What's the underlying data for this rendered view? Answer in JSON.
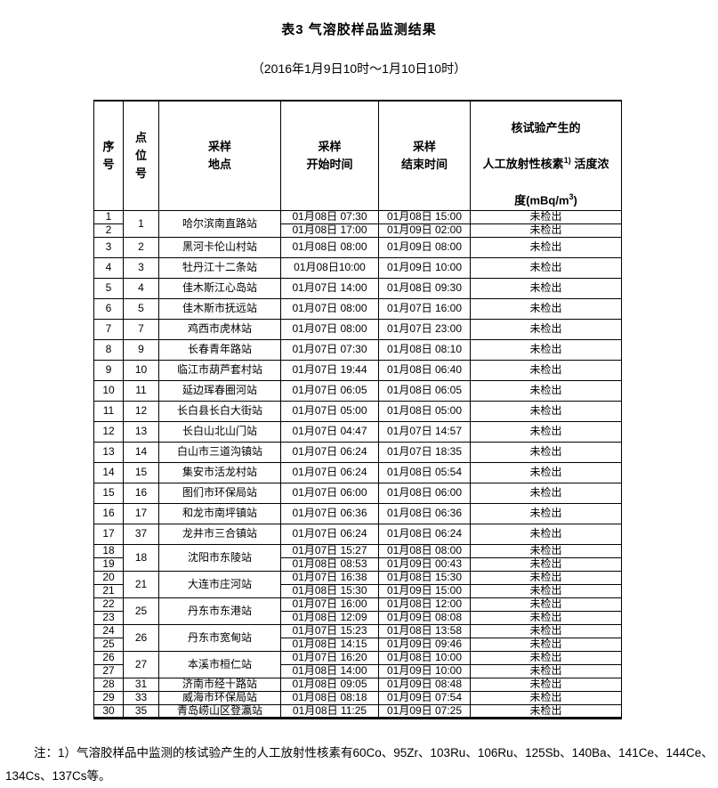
{
  "page": {
    "title": "表3 气溶胶样品监测结果",
    "subtitle": "（2016年1月9日10时～1月10日10时）",
    "note_line1": "注：1）气溶胶样品中监测的核试验产生的人工放射性核素有60Co、95Zr、103Ru、106Ru、125Sb、140Ba、141Ce、144Ce、",
    "note_line2": "134Cs、137Cs等。"
  },
  "table": {
    "headers": {
      "seq": "序\n号",
      "point": "点\n位\n号",
      "station": "采样\n地点",
      "start": "采样\n开始时间",
      "end": "采样\n结束时间",
      "nuclide": {
        "line1": "核试验产生的",
        "line2_pre": "人工放射性核素",
        "line2_sup": "1)",
        "line2_post": " 活度浓",
        "line3_pre": "度(mBq/m",
        "line3_sup": "3",
        "line3_post": ")"
      }
    },
    "groups": [
      {
        "point": "1",
        "station": "哈尔滨南直路站",
        "compact": true,
        "rows": [
          {
            "seq": "1",
            "start": "01月08日 07:30",
            "end": "01月08日 15:00",
            "result": "未检出"
          },
          {
            "seq": "2",
            "start": "01月08日 17:00",
            "end": "01月09日 02:00",
            "result": "未检出"
          }
        ]
      },
      {
        "point": "2",
        "station": "黑河卡伦山村站",
        "compact": false,
        "rows": [
          {
            "seq": "3",
            "start": "01月08日 08:00",
            "end": "01月09日 08:00",
            "result": "未检出"
          }
        ]
      },
      {
        "point": "3",
        "station": "牡丹江十二条站",
        "compact": false,
        "rows": [
          {
            "seq": "4",
            "start": "01月08日10:00",
            "end": "01月09日 10:00",
            "result": "未检出"
          }
        ]
      },
      {
        "point": "4",
        "station": "佳木斯江心岛站",
        "compact": false,
        "rows": [
          {
            "seq": "5",
            "start": "01月07日 14:00",
            "end": "01月08日 09:30",
            "result": "未检出"
          }
        ]
      },
      {
        "point": "5",
        "station": "佳木斯市抚远站",
        "compact": false,
        "rows": [
          {
            "seq": "6",
            "start": "01月07日 08:00",
            "end": "01月07日 16:00",
            "result": "未检出"
          }
        ]
      },
      {
        "point": "7",
        "station": "鸡西市虎林站",
        "compact": false,
        "rows": [
          {
            "seq": "7",
            "start": "01月07日 08:00",
            "end": "01月07日 23:00",
            "result": "未检出"
          }
        ]
      },
      {
        "point": "9",
        "station": "长春青年路站",
        "compact": false,
        "rows": [
          {
            "seq": "8",
            "start": "01月07日 07:30",
            "end": "01月08日 08:10",
            "result": "未检出"
          }
        ]
      },
      {
        "point": "10",
        "station": "临江市葫芦套村站",
        "compact": false,
        "rows": [
          {
            "seq": "9",
            "start": "01月07日 19:44",
            "end": "01月08日 06:40",
            "result": "未检出"
          }
        ]
      },
      {
        "point": "11",
        "station": "延边珲春圈河站",
        "compact": false,
        "rows": [
          {
            "seq": "10",
            "start": "01月07日 06:05",
            "end": "01月08日 06:05",
            "result": "未检出"
          }
        ]
      },
      {
        "point": "12",
        "station": "长白县长白大街站",
        "compact": false,
        "rows": [
          {
            "seq": "11",
            "start": "01月07日 05:00",
            "end": "01月08日 05:00",
            "result": "未检出"
          }
        ]
      },
      {
        "point": "13",
        "station": "长白山北山门站",
        "compact": false,
        "rows": [
          {
            "seq": "12",
            "start": "01月07日 04:47",
            "end": "01月07日 14:57",
            "result": "未检出"
          }
        ]
      },
      {
        "point": "14",
        "station": "白山市三道沟镇站",
        "compact": false,
        "rows": [
          {
            "seq": "13",
            "start": "01月07日 06:24",
            "end": "01月07日 18:35",
            "result": "未检出"
          }
        ]
      },
      {
        "point": "15",
        "station": "集安市活龙村站",
        "compact": false,
        "rows": [
          {
            "seq": "14",
            "start": "01月07日 06:24",
            "end": "01月08日 05:54",
            "result": "未检出"
          }
        ]
      },
      {
        "point": "16",
        "station": "图们市环保局站",
        "compact": false,
        "rows": [
          {
            "seq": "15",
            "start": "01月07日 06:00",
            "end": "01月08日 06:00",
            "result": "未检出"
          }
        ]
      },
      {
        "point": "17",
        "station": "和龙市南坪镇站",
        "compact": false,
        "rows": [
          {
            "seq": "16",
            "start": "01月07日 06:36",
            "end": "01月08日 06:36",
            "result": "未检出"
          }
        ]
      },
      {
        "point": "37",
        "station": "龙井市三合镇站",
        "compact": false,
        "rows": [
          {
            "seq": "17",
            "start": "01月07日 06:24",
            "end": "01月08日 06:24",
            "result": "未检出"
          }
        ]
      },
      {
        "point": "18",
        "station": "沈阳市东陵站",
        "compact": true,
        "rows": [
          {
            "seq": "18",
            "start": "01月07日 15:27",
            "end": "01月08日 08:00",
            "result": "未检出"
          },
          {
            "seq": "19",
            "start": "01月08日 08:53",
            "end": "01月09日 00:43",
            "result": "未检出"
          }
        ]
      },
      {
        "point": "21",
        "station": "大连市庄河站",
        "compact": true,
        "rows": [
          {
            "seq": "20",
            "start": "01月07日 16:38",
            "end": "01月08日 15:30",
            "result": "未检出"
          },
          {
            "seq": "21",
            "start": "01月08日 15:30",
            "end": "01月09日 15:00",
            "result": "未检出"
          }
        ]
      },
      {
        "point": "25",
        "station": "丹东市东港站",
        "compact": true,
        "rows": [
          {
            "seq": "22",
            "start": "01月07日 16:00",
            "end": "01月08日 12:00",
            "result": "未检出"
          },
          {
            "seq": "23",
            "start": "01月08日 12:09",
            "end": "01月09日 08:08",
            "result": "未检出"
          }
        ]
      },
      {
        "point": "26",
        "station": "丹东市宽甸站",
        "compact": true,
        "rows": [
          {
            "seq": "24",
            "start": "01月07日 15:23",
            "end": "01月08日 13:58",
            "result": "未检出"
          },
          {
            "seq": "25",
            "start": "01月08日 14:15",
            "end": "01月09日 09:46",
            "result": "未检出"
          }
        ]
      },
      {
        "point": "27",
        "station": "本溪市桓仁站",
        "compact": true,
        "rows": [
          {
            "seq": "26",
            "start": "01月07日 16:20",
            "end": "01月08日 10:00",
            "result": "未检出"
          },
          {
            "seq": "27",
            "start": "01月08日 14:00",
            "end": "01月09日 10:00",
            "result": "未检出"
          }
        ]
      },
      {
        "point": "31",
        "station": "济南市经十路站",
        "compact": true,
        "rows": [
          {
            "seq": "28",
            "start": "01月08日 09:05",
            "end": "01月09日 08:48",
            "result": "未检出"
          }
        ]
      },
      {
        "point": "33",
        "station": "威海市环保局站",
        "compact": true,
        "rows": [
          {
            "seq": "29",
            "start": "01月08日 08:18",
            "end": "01月09日 07:54",
            "result": "未检出"
          }
        ]
      },
      {
        "point": "35",
        "station": "青岛崂山区登瀛站",
        "compact": true,
        "rows": [
          {
            "seq": "30",
            "start": "01月08日 11:25",
            "end": "01月09日 07:25",
            "result": "未检出"
          }
        ]
      }
    ]
  }
}
